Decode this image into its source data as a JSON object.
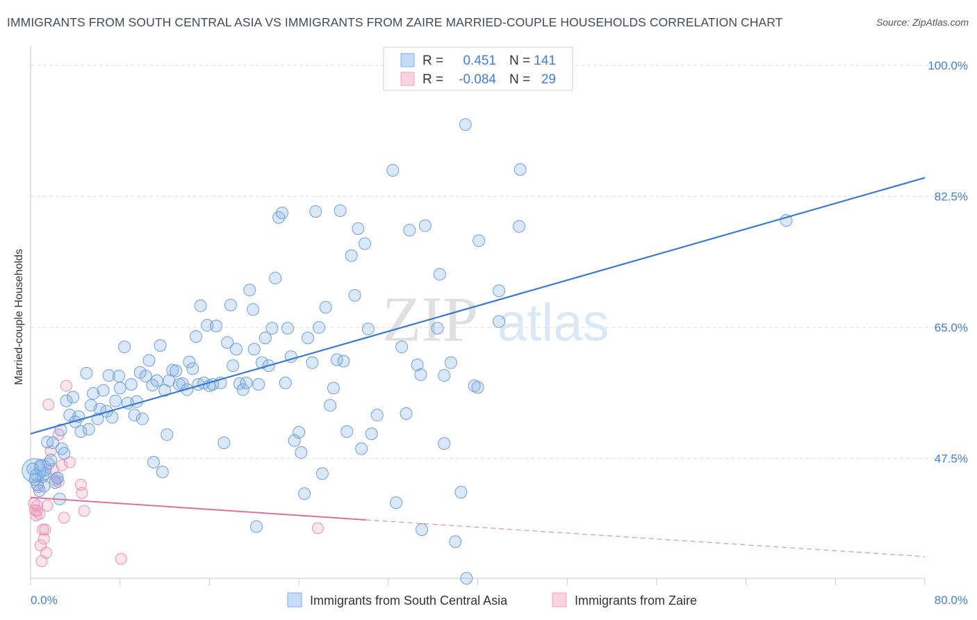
{
  "header": {
    "title": "IMMIGRANTS FROM SOUTH CENTRAL ASIA VS IMMIGRANTS FROM ZAIRE MARRIED-COUPLE HOUSEHOLDS CORRELATION CHART",
    "source": "Source: ZipAtlas.com"
  },
  "watermark": {
    "zip": "ZIP",
    "atlas": "atlas"
  },
  "legend": {
    "r_label": "R =",
    "n_label": "N =",
    "rows": [
      {
        "r": "0.451",
        "n": "141",
        "color": "#7eaee8"
      },
      {
        "r": "-0.084",
        "n": "29",
        "color": "#f1a2bd"
      }
    ]
  },
  "colors": {
    "blue": "#3a78d4",
    "pink": "#e0709a",
    "tick": "#3f7fd8"
  },
  "chart_data": {
    "type": "scatter",
    "title": "IMMIGRANTS FROM SOUTH CENTRAL ASIA VS IMMIGRANTS FROM ZAIRE MARRIED-COUPLE HOUSEHOLDS CORRELATION CHART",
    "xlabel": "",
    "ylabel": "Married-couple Households",
    "xlim": [
      0,
      80
    ],
    "ylim": [
      31.5,
      101.5
    ],
    "x_tick_labels": [
      "0.0%",
      "80.0%"
    ],
    "y_ticks": [
      47.5,
      65.0,
      82.5,
      100.0
    ],
    "y_tick_labels": [
      "47.5%",
      "65.0%",
      "82.5%",
      "100.0%"
    ],
    "grid": true,
    "legend_position": "top-center",
    "series": [
      {
        "name": "Immigrants from South Central Asia",
        "color": "#7eaee8",
        "R": 0.451,
        "N": 141,
        "trend": {
          "x": [
            0,
            80
          ],
          "y": [
            50.8,
            85.0
          ],
          "style": "solid"
        },
        "points": [
          [
            0.2,
            46.1
          ],
          [
            0.4,
            44.7
          ],
          [
            0.5,
            45.3
          ],
          [
            0.6,
            44.0
          ],
          [
            0.8,
            43.2
          ],
          [
            0.9,
            46.6
          ],
          [
            1.1,
            45.1
          ],
          [
            1.2,
            43.8
          ],
          [
            1.3,
            45.5
          ],
          [
            1.5,
            49.7
          ],
          [
            1.6,
            46.8
          ],
          [
            1.8,
            47.3
          ],
          [
            2.0,
            49.6
          ],
          [
            2.2,
            44.3
          ],
          [
            2.4,
            44.9
          ],
          [
            2.6,
            42.1
          ],
          [
            2.7,
            51.3
          ],
          [
            2.8,
            48.8
          ],
          [
            3.0,
            48.2
          ],
          [
            3.2,
            55.2
          ],
          [
            3.5,
            53.3
          ],
          [
            3.8,
            55.7
          ],
          [
            4.0,
            52.4
          ],
          [
            4.3,
            53.1
          ],
          [
            4.5,
            51.1
          ],
          [
            5.0,
            58.9
          ],
          [
            5.2,
            51.4
          ],
          [
            5.4,
            54.6
          ],
          [
            5.6,
            56.2
          ],
          [
            6.0,
            52.8
          ],
          [
            6.2,
            54.1
          ],
          [
            6.5,
            56.6
          ],
          [
            6.8,
            53.8
          ],
          [
            7.0,
            58.6
          ],
          [
            7.3,
            53.0
          ],
          [
            7.6,
            55.2
          ],
          [
            7.9,
            58.5
          ],
          [
            8.0,
            56.9
          ],
          [
            8.4,
            62.4
          ],
          [
            8.7,
            54.9
          ],
          [
            9.0,
            57.4
          ],
          [
            9.3,
            53.3
          ],
          [
            9.5,
            55.1
          ],
          [
            9.8,
            59.0
          ],
          [
            10.0,
            52.8
          ],
          [
            10.3,
            58.5
          ],
          [
            10.6,
            60.6
          ],
          [
            10.9,
            57.3
          ],
          [
            11.0,
            47.0
          ],
          [
            11.3,
            57.9
          ],
          [
            11.6,
            62.6
          ],
          [
            11.8,
            45.7
          ],
          [
            12.0,
            56.6
          ],
          [
            12.2,
            50.7
          ],
          [
            12.4,
            57.9
          ],
          [
            12.7,
            59.3
          ],
          [
            13.0,
            59.2
          ],
          [
            13.3,
            57.4
          ],
          [
            13.6,
            57.5
          ],
          [
            14.0,
            56.7
          ],
          [
            14.2,
            60.4
          ],
          [
            14.5,
            59.5
          ],
          [
            14.8,
            63.8
          ],
          [
            15.0,
            57.4
          ],
          [
            15.2,
            67.9
          ],
          [
            15.5,
            57.6
          ],
          [
            15.8,
            65.3
          ],
          [
            16.0,
            57.2
          ],
          [
            16.3,
            57.4
          ],
          [
            16.6,
            65.2
          ],
          [
            17.0,
            57.6
          ],
          [
            17.3,
            49.6
          ],
          [
            17.6,
            63.0
          ],
          [
            17.9,
            68.0
          ],
          [
            18.1,
            59.9
          ],
          [
            18.4,
            62.1
          ],
          [
            18.7,
            57.5
          ],
          [
            19.0,
            56.7
          ],
          [
            19.3,
            57.6
          ],
          [
            19.6,
            70.0
          ],
          [
            19.9,
            67.4
          ],
          [
            20.0,
            62.1
          ],
          [
            20.4,
            57.4
          ],
          [
            20.7,
            60.3
          ],
          [
            21.0,
            63.6
          ],
          [
            21.3,
            59.9
          ],
          [
            21.6,
            64.9
          ],
          [
            21.9,
            71.6
          ],
          [
            22.2,
            79.7
          ],
          [
            22.5,
            80.3
          ],
          [
            22.8,
            57.6
          ],
          [
            23.0,
            64.9
          ],
          [
            23.3,
            61.1
          ],
          [
            23.6,
            49.9
          ],
          [
            24.0,
            51.0
          ],
          [
            24.2,
            48.3
          ],
          [
            24.5,
            42.8
          ],
          [
            24.8,
            63.6
          ],
          [
            25.2,
            60.3
          ],
          [
            25.5,
            80.5
          ],
          [
            25.8,
            65.0
          ],
          [
            26.1,
            45.5
          ],
          [
            26.4,
            67.7
          ],
          [
            26.8,
            54.6
          ],
          [
            27.1,
            56.9
          ],
          [
            27.4,
            60.7
          ],
          [
            27.7,
            80.6
          ],
          [
            28.0,
            60.5
          ],
          [
            28.3,
            51.1
          ],
          [
            28.7,
            74.6
          ],
          [
            29.0,
            69.3
          ],
          [
            29.3,
            78.2
          ],
          [
            29.6,
            48.8
          ],
          [
            29.9,
            76.2
          ],
          [
            30.2,
            64.8
          ],
          [
            30.5,
            50.8
          ],
          [
            31.0,
            53.3
          ],
          [
            32.4,
            86.0
          ],
          [
            32.7,
            41.6
          ],
          [
            33.2,
            62.4
          ],
          [
            33.6,
            53.5
          ],
          [
            33.9,
            78.0
          ],
          [
            34.6,
            60.0
          ],
          [
            34.9,
            58.7
          ],
          [
            35.0,
            38.0
          ],
          [
            35.3,
            78.6
          ],
          [
            36.4,
            64.9
          ],
          [
            36.6,
            72.1
          ],
          [
            37.0,
            49.5
          ],
          [
            37.0,
            58.6
          ],
          [
            37.6,
            60.3
          ],
          [
            38.5,
            43.0
          ],
          [
            38.0,
            36.4
          ],
          [
            38.9,
            92.1
          ],
          [
            39.0,
            31.5
          ],
          [
            39.7,
            57.2
          ],
          [
            40.0,
            57.0
          ],
          [
            40.1,
            76.6
          ],
          [
            41.9,
            69.9
          ],
          [
            41.9,
            65.8
          ],
          [
            43.7,
            78.5
          ],
          [
            43.8,
            86.1
          ],
          [
            67.6,
            79.3
          ],
          [
            2.4,
            44.9
          ],
          [
            20.2,
            38.4
          ]
        ]
      },
      {
        "name": "Immigrants from Zaire",
        "color": "#f1a2bd",
        "R": -0.084,
        "N": 29,
        "trend": {
          "x": [
            0,
            30,
            80
          ],
          "y": [
            42.3,
            39.3,
            34.4
          ],
          "style": "solid-then-dashed"
        },
        "points": [
          [
            0.3,
            41.5
          ],
          [
            0.4,
            40.6
          ],
          [
            0.5,
            39.9
          ],
          [
            0.6,
            40.5
          ],
          [
            0.6,
            41.2
          ],
          [
            0.7,
            43.7
          ],
          [
            0.8,
            40.1
          ],
          [
            0.9,
            35.9
          ],
          [
            1.0,
            33.8
          ],
          [
            1.1,
            38.0
          ],
          [
            1.2,
            36.8
          ],
          [
            1.3,
            38.0
          ],
          [
            1.4,
            34.9
          ],
          [
            1.5,
            41.2
          ],
          [
            1.6,
            54.7
          ],
          [
            1.8,
            48.5
          ],
          [
            2.0,
            46.1
          ],
          [
            2.2,
            44.6
          ],
          [
            2.5,
            50.7
          ],
          [
            2.5,
            44.4
          ],
          [
            2.8,
            46.6
          ],
          [
            3.0,
            39.6
          ],
          [
            3.2,
            57.2
          ],
          [
            3.5,
            47.0
          ],
          [
            4.6,
            42.9
          ],
          [
            4.8,
            40.5
          ],
          [
            8.1,
            34.1
          ],
          [
            25.7,
            38.2
          ],
          [
            4.5,
            44.0
          ]
        ]
      }
    ]
  },
  "bottom_legend": [
    {
      "label": "Immigrants from South Central Asia",
      "color": "#7eaee8"
    },
    {
      "label": "Immigrants from Zaire",
      "color": "#f1a2bd"
    }
  ]
}
